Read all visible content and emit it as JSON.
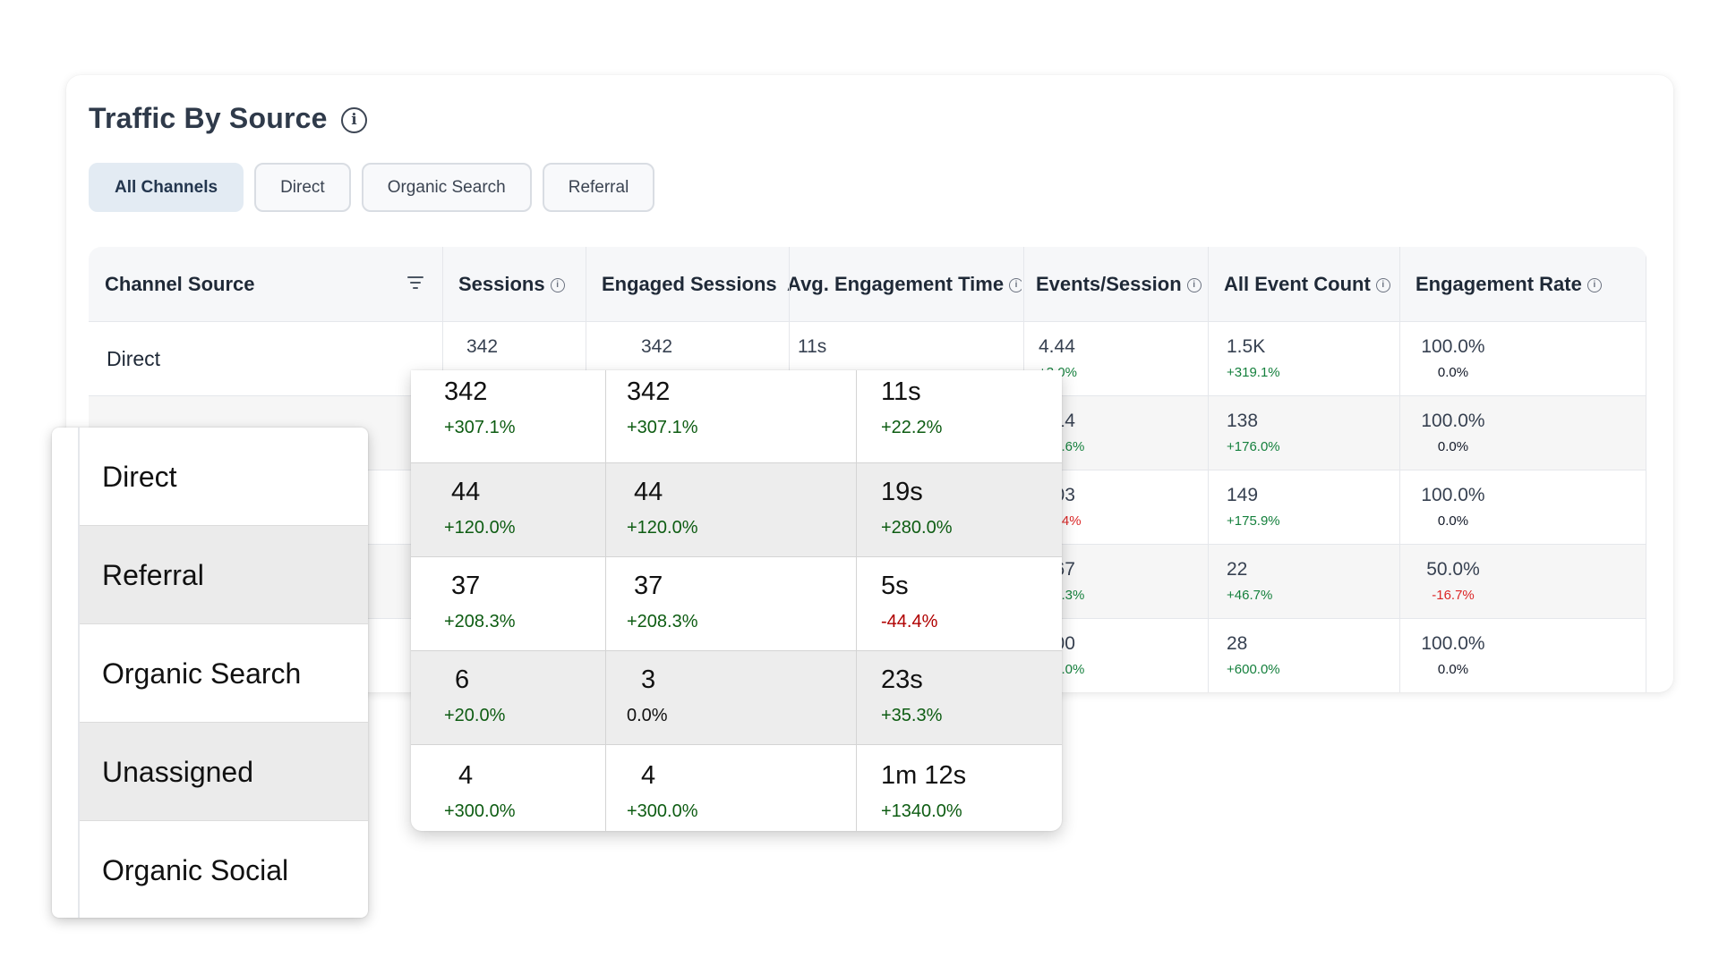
{
  "card": {
    "title": "Traffic By Source",
    "info_icon": "info-icon"
  },
  "tabs": [
    {
      "label": "All Channels",
      "active": true
    },
    {
      "label": "Direct",
      "active": false
    },
    {
      "label": "Organic Search",
      "active": false
    },
    {
      "label": "Referral",
      "active": false
    }
  ],
  "table": {
    "headers": {
      "channel_source": "Channel Source",
      "sessions": "Sessions",
      "engaged_sessions": "Engaged Sessions",
      "avg_engagement_time": "Avg. Engagement Time",
      "events_session": "Events/Session",
      "all_event_count": "All Event Count",
      "engagement_rate": "Engagement Rate"
    },
    "rows": [
      {
        "source": "Direct",
        "sessions": "342",
        "engaged": "342",
        "avg_time": "11s",
        "events": "4.44",
        "events_delta": "+3.0%",
        "count": "1.5K",
        "count_delta": "+319.1%",
        "rate": "100.0%",
        "rate_delta": "0.0%"
      },
      {
        "source": "",
        "events": "3.14",
        "events_delta": "+25.6%",
        "count": "138",
        "count_delta": "+176.0%",
        "rate": "100.0%",
        "rate_delta": "0.0%"
      },
      {
        "source": "",
        "events": "4.03",
        "events_delta": "-10.4%",
        "count": "149",
        "count_delta": "+175.9%",
        "rate": "100.0%",
        "rate_delta": "0.0%"
      },
      {
        "source": "",
        "events": "3.67",
        "events_delta": "+22.3%",
        "count": "22",
        "count_delta": "+46.7%",
        "rate": "50.0%",
        "rate_delta": "-16.7%"
      },
      {
        "source": "",
        "events": "7.00",
        "events_delta": "+75.0%",
        "count": "28",
        "count_delta": "+600.0%",
        "rate": "100.0%",
        "rate_delta": "0.0%"
      }
    ]
  },
  "overlay_list": {
    "items": [
      "Direct",
      "Referral",
      "Organic Search",
      "Unassigned",
      "Organic Social"
    ]
  },
  "overlay_metrics": {
    "rows": [
      {
        "sessions": "342",
        "sessions_delta": "+307.1%",
        "engaged": "342",
        "engaged_delta": "+307.1%",
        "time": "11s",
        "time_delta": "+22.2%"
      },
      {
        "sessions": "44",
        "sessions_delta": "+120.0%",
        "engaged": "44",
        "engaged_delta": "+120.0%",
        "time": "19s",
        "time_delta": "+280.0%"
      },
      {
        "sessions": "37",
        "sessions_delta": "+208.3%",
        "engaged": "37",
        "engaged_delta": "+208.3%",
        "time": "5s",
        "time_delta": "-44.4%"
      },
      {
        "sessions": "6",
        "sessions_delta": "+20.0%",
        "engaged": "3",
        "engaged_delta": "0.0%",
        "time": "23s",
        "time_delta": "+35.3%"
      },
      {
        "sessions": "4",
        "sessions_delta": "+300.0%",
        "engaged": "4",
        "engaged_delta": "+300.0%",
        "time": "1m 12s",
        "time_delta": "+1340.0%"
      }
    ]
  },
  "colors": {
    "positive": "#15803d",
    "negative": "#dc2626",
    "active_tab": "#e3ebf3"
  }
}
